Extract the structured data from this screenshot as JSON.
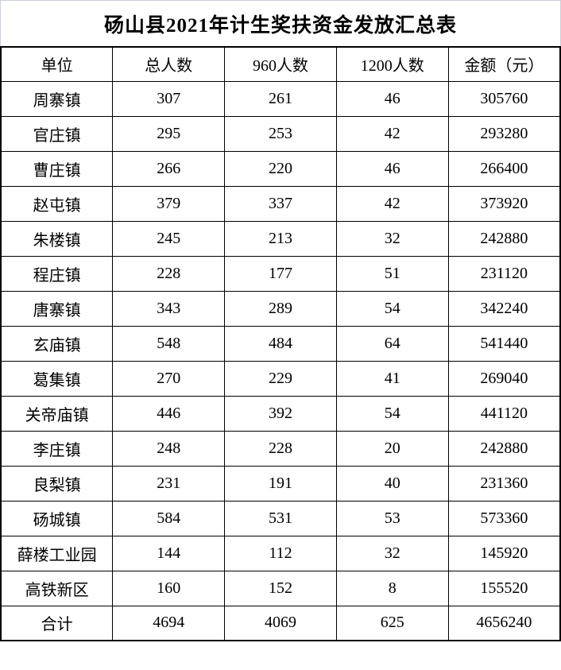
{
  "page": {
    "title": "砀山县2021年计生奖扶资金发放汇总表"
  },
  "table": {
    "headers": [
      "单位",
      "总人数",
      "960人数",
      "1200人数",
      "金额（元）"
    ],
    "rows": [
      [
        "周寨镇",
        "307",
        "261",
        "46",
        "305760"
      ],
      [
        "官庄镇",
        "295",
        "253",
        "42",
        "293280"
      ],
      [
        "曹庄镇",
        "266",
        "220",
        "46",
        "266400"
      ],
      [
        "赵屯镇",
        "379",
        "337",
        "42",
        "373920"
      ],
      [
        "朱楼镇",
        "245",
        "213",
        "32",
        "242880"
      ],
      [
        "程庄镇",
        "228",
        "177",
        "51",
        "231120"
      ],
      [
        "唐寨镇",
        "343",
        "289",
        "54",
        "342240"
      ],
      [
        "玄庙镇",
        "548",
        "484",
        "64",
        "541440"
      ],
      [
        "葛集镇",
        "270",
        "229",
        "41",
        "269040"
      ],
      [
        "关帝庙镇",
        "446",
        "392",
        "54",
        "441120"
      ],
      [
        "李庄镇",
        "248",
        "228",
        "20",
        "242880"
      ],
      [
        "良梨镇",
        "231",
        "191",
        "40",
        "231360"
      ],
      [
        "砀城镇",
        "584",
        "531",
        "53",
        "573360"
      ],
      [
        "薛楼工业园",
        "144",
        "112",
        "32",
        "145920"
      ],
      [
        "高铁新区",
        "160",
        "152",
        "8",
        "155520"
      ],
      [
        "合计",
        "4694",
        "4069",
        "625",
        "4656240"
      ]
    ]
  },
  "colors": {
    "table_border": "#000000",
    "title_frame": "#c9cfda",
    "text": "#000000",
    "background": "#ffffff"
  }
}
